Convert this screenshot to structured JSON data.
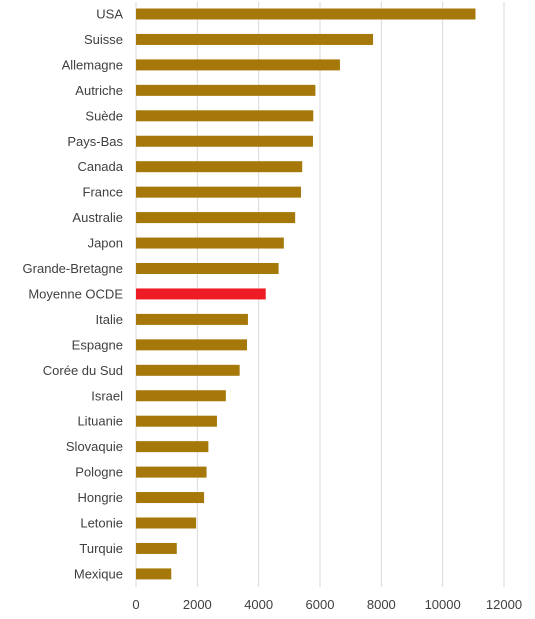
{
  "chart_data": {
    "type": "bar",
    "orientation": "horizontal",
    "title": "",
    "xlabel": "",
    "ylabel": "",
    "categories": [
      "USA",
      "Suisse",
      "Allemagne",
      "Autriche",
      "Suède",
      "Pays-Bas",
      "Canada",
      "France",
      "Australie",
      "Japon",
      "Grande-Bretagne",
      "Moyenne OCDE",
      "Italie",
      "Espagne",
      "Corée du Sud",
      "Israel",
      "Lituanie",
      "Slovaquie",
      "Pologne",
      "Hongrie",
      "Letonie",
      "Turquie",
      "Mexique"
    ],
    "values": [
      11070,
      7730,
      6650,
      5850,
      5780,
      5770,
      5420,
      5380,
      5190,
      4820,
      4650,
      4230,
      3650,
      3620,
      3380,
      2930,
      2640,
      2360,
      2300,
      2220,
      1960,
      1330,
      1150
    ],
    "highlight_category": "Moyenne OCDE",
    "xlim": [
      0,
      12000
    ],
    "x_ticks": [
      0,
      2000,
      4000,
      6000,
      8000,
      10000,
      12000
    ],
    "grid": "vertical",
    "legend": "none",
    "colors": {
      "bar": "#A67709",
      "highlight": "#ED1C24",
      "grid": "#D9D9D9",
      "text": "#404040"
    }
  }
}
